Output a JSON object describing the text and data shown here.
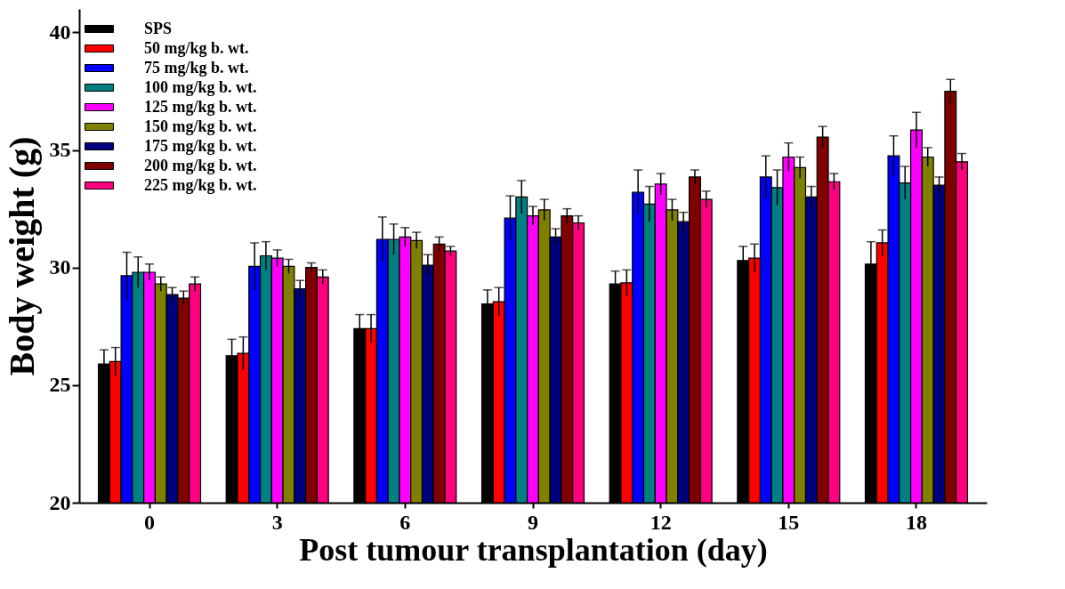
{
  "chart_data": {
    "type": "bar",
    "xlabel": "Post tumour transplantation (day)",
    "ylabel": "Body weight (g)",
    "categories": [
      "0",
      "3",
      "6",
      "9",
      "12",
      "15",
      "18"
    ],
    "ylim": [
      20,
      41
    ],
    "yticks": [
      20,
      25,
      30,
      35,
      40
    ],
    "grid": false,
    "legend": "top left",
    "series": [
      {
        "name": "SPS",
        "color": "#000000",
        "values": [
          25.9,
          26.25,
          27.4,
          28.45,
          29.3,
          30.3,
          30.15
        ],
        "errors": [
          0.6,
          0.7,
          0.6,
          0.6,
          0.55,
          0.6,
          0.95
        ]
      },
      {
        "name": "50 mg/kg b. wt.",
        "color": "#ff0000",
        "values": [
          26.0,
          26.35,
          27.4,
          28.55,
          29.35,
          30.4,
          31.05
        ],
        "errors": [
          0.6,
          0.7,
          0.6,
          0.6,
          0.55,
          0.6,
          0.55
        ]
      },
      {
        "name": "75 mg/kg b. wt.",
        "color": "#0000ff",
        "values": [
          29.65,
          30.05,
          31.2,
          32.1,
          33.2,
          33.85,
          34.75
        ],
        "errors": [
          1.0,
          1.0,
          0.95,
          0.95,
          0.95,
          0.9,
          0.85
        ]
      },
      {
        "name": "100 mg/kg b. wt.",
        "color": "#008080",
        "values": [
          29.8,
          30.5,
          31.2,
          33.0,
          32.7,
          33.4,
          33.6
        ],
        "errors": [
          0.65,
          0.6,
          0.65,
          0.7,
          0.75,
          0.75,
          0.7
        ]
      },
      {
        "name": "125 mg/kg b. wt.",
        "color": "#ff00ff",
        "values": [
          29.8,
          30.4,
          31.3,
          32.2,
          33.55,
          34.7,
          35.85
        ],
        "errors": [
          0.35,
          0.35,
          0.4,
          0.4,
          0.45,
          0.6,
          0.75
        ]
      },
      {
        "name": "150 mg/kg b. wt.",
        "color": "#808000",
        "values": [
          29.3,
          30.05,
          31.15,
          32.45,
          32.45,
          34.25,
          34.7
        ],
        "errors": [
          0.3,
          0.3,
          0.35,
          0.45,
          0.45,
          0.45,
          0.4
        ]
      },
      {
        "name": "175 mg/kg b. wt.",
        "color": "#000080",
        "values": [
          28.85,
          29.1,
          30.1,
          31.3,
          31.95,
          33.0,
          33.5
        ],
        "errors": [
          0.3,
          0.35,
          0.45,
          0.35,
          0.4,
          0.45,
          0.35
        ]
      },
      {
        "name": "200 mg/kg b. wt.",
        "color": "#800000",
        "values": [
          28.7,
          30.0,
          31.0,
          32.2,
          33.85,
          35.55,
          37.5
        ],
        "errors": [
          0.3,
          0.2,
          0.3,
          0.3,
          0.3,
          0.45,
          0.5
        ]
      },
      {
        "name": "225 mg/kg b. wt.",
        "color": "#ff0080",
        "values": [
          29.3,
          29.6,
          30.7,
          31.9,
          32.9,
          33.65,
          34.5
        ],
        "errors": [
          0.3,
          0.3,
          0.2,
          0.3,
          0.35,
          0.35,
          0.35
        ]
      }
    ]
  }
}
